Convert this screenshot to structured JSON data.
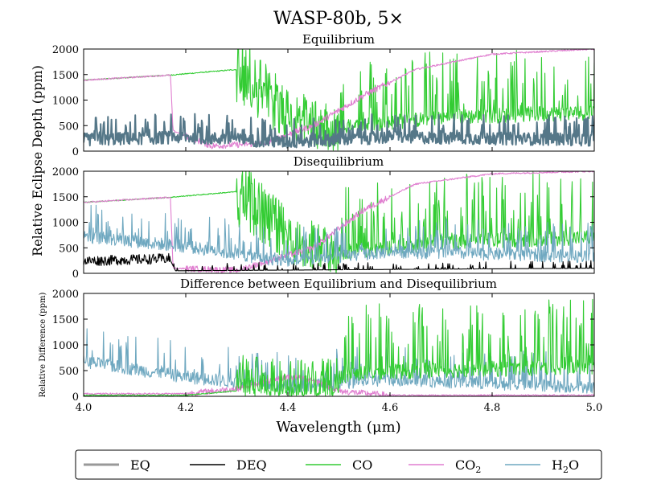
{
  "chart_data": {
    "type": "line",
    "title": "WASP-80b, 5×",
    "xlabel": "Wavelength (μm)",
    "shared_ylabel": "Relative Eclipse Depth (ppm)",
    "xlim": [
      4.0,
      5.0
    ],
    "x_ticks": [
      "4.0",
      "4.2",
      "4.4",
      "4.6",
      "4.8",
      "5.0"
    ],
    "y_ticks": [
      "0",
      "500",
      "1000",
      "1500",
      "2000"
    ],
    "colors": {
      "EQ": "#999999",
      "DEQ": "#000000",
      "CO": "#33cc33",
      "CO2": "#e07fd0",
      "H2O": "#6fa8c0",
      "EQ_H2O": "#557788"
    },
    "legend": {
      "placement": "bottom",
      "entries": [
        {
          "key": "EQ",
          "label": "EQ",
          "sub": ""
        },
        {
          "key": "DEQ",
          "label": "DEQ",
          "sub": ""
        },
        {
          "key": "CO",
          "label": "CO",
          "sub": ""
        },
        {
          "key": "CO2",
          "label": "CO",
          "sub": "2"
        },
        {
          "key": "H2O",
          "label": "H",
          "sub": "2",
          "suffix": "O"
        }
      ]
    },
    "panels": [
      {
        "title": "Equilibrium",
        "ylabel": "",
        "ylim": [
          0,
          2000
        ],
        "series": [
          {
            "name": "CO",
            "approx": [
              [
                4.0,
                1390
              ],
              [
                4.17,
                1490
              ],
              [
                4.3,
                1600
              ],
              [
                4.32,
                1500
              ],
              [
                4.4,
                700
              ],
              [
                4.5,
                400
              ],
              [
                4.7,
                600
              ],
              [
                5.0,
                700
              ]
            ]
          },
          {
            "name": "CO2",
            "approx": [
              [
                4.0,
                1390
              ],
              [
                4.17,
                1490
              ],
              [
                4.175,
                400
              ],
              [
                4.25,
                100
              ],
              [
                4.35,
                150
              ],
              [
                4.45,
                500
              ],
              [
                4.55,
                1100
              ],
              [
                4.65,
                1600
              ],
              [
                4.8,
                1900
              ],
              [
                5.0,
                2000
              ]
            ]
          },
          {
            "name": "H2O",
            "approx": [
              [
                4.0,
                200
              ],
              [
                4.2,
                250
              ],
              [
                4.4,
                150
              ],
              [
                4.6,
                250
              ],
              [
                5.0,
                200
              ]
            ]
          }
        ]
      },
      {
        "title": "Disequilibrium",
        "ylabel": "",
        "ylim": [
          0,
          2000
        ],
        "series": [
          {
            "name": "CO",
            "approx": [
              [
                4.0,
                1390
              ],
              [
                4.17,
                1490
              ],
              [
                4.3,
                1600
              ],
              [
                4.32,
                1500
              ],
              [
                4.4,
                700
              ],
              [
                4.5,
                350
              ],
              [
                4.7,
                550
              ],
              [
                5.0,
                650
              ]
            ]
          },
          {
            "name": "CO2",
            "approx": [
              [
                4.0,
                1390
              ],
              [
                4.17,
                1490
              ],
              [
                4.175,
                100
              ],
              [
                4.3,
                60
              ],
              [
                4.45,
                500
              ],
              [
                4.55,
                1250
              ],
              [
                4.65,
                1750
              ],
              [
                4.8,
                1950
              ],
              [
                5.0,
                2000
              ]
            ]
          },
          {
            "name": "H2O",
            "approx": [
              [
                4.0,
                700
              ],
              [
                4.2,
                500
              ],
              [
                4.4,
                200
              ],
              [
                4.6,
                400
              ],
              [
                5.0,
                300
              ]
            ]
          },
          {
            "name": "DEQ",
            "approx": [
              [
                4.0,
                200
              ],
              [
                4.17,
                250
              ],
              [
                4.18,
                50
              ],
              [
                5.0,
                100
              ]
            ]
          }
        ]
      },
      {
        "title": "Difference between Equilibrium and Disequilibrium",
        "ylabel": "Relative Difference (ppm)",
        "ylim": [
          0,
          2000
        ],
        "series": [
          {
            "name": "H2O",
            "approx": [
              [
                4.0,
                650
              ],
              [
                4.2,
                350
              ],
              [
                4.4,
                150
              ],
              [
                4.6,
                300
              ],
              [
                5.0,
                150
              ]
            ]
          },
          {
            "name": "CO2",
            "approx": [
              [
                4.2,
                50
              ],
              [
                4.3,
                150
              ],
              [
                4.4,
                380
              ],
              [
                4.45,
                320
              ],
              [
                4.5,
                100
              ],
              [
                4.6,
                20
              ]
            ]
          },
          {
            "name": "CO",
            "approx": [
              [
                4.2,
                20
              ],
              [
                4.35,
                150
              ],
              [
                4.45,
                250
              ],
              [
                4.55,
                400
              ],
              [
                4.7,
                450
              ],
              [
                5.0,
                500
              ]
            ]
          }
        ]
      }
    ]
  }
}
